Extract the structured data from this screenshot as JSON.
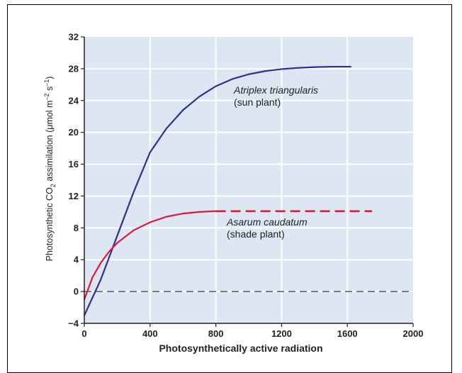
{
  "chart_data": {
    "type": "line",
    "xlabel": "Photosynthetically active radiation",
    "ylabel": {
      "prefix": "Photosynthetic CO",
      "sub": "2",
      "middle": " assimilation (μmol m",
      "sup1": "–2",
      "gap": " s",
      "sup2": "–1",
      "end": ")"
    },
    "xlim": [
      0,
      2000
    ],
    "ylim": [
      -4,
      32
    ],
    "xticks": [
      0,
      400,
      800,
      1200,
      1600,
      2000
    ],
    "yticks": [
      -4,
      0,
      4,
      8,
      12,
      16,
      20,
      24,
      28,
      32
    ],
    "grid": true,
    "background": "#dce7f3",
    "zero_line": {
      "y": 0,
      "style": "dashed",
      "color": "#555555"
    },
    "series": [
      {
        "name": "Atriplex triangularis",
        "label_line1": "Atriplex triangularis",
        "label_line2": "(sun plant)",
        "color": "#2e3192",
        "x": [
          0,
          100,
          200,
          300,
          400,
          500,
          600,
          700,
          800,
          900,
          1000,
          1100,
          1200,
          1300,
          1400,
          1500,
          1620
        ],
        "y": [
          -3,
          1.5,
          7,
          12.5,
          17.5,
          20.5,
          22.8,
          24.5,
          25.8,
          26.7,
          27.3,
          27.7,
          27.95,
          28.1,
          28.2,
          28.25,
          28.25
        ]
      },
      {
        "name": "Asarum caudatum",
        "label_line1": "Asarum caudatum",
        "label_line2": "(shade plant)",
        "color": "#e0193c",
        "x": [
          0,
          50,
          100,
          150,
          200,
          300,
          400,
          500,
          600,
          700,
          800
        ],
        "y": [
          -1,
          1.8,
          3.6,
          5.0,
          6.1,
          7.7,
          8.7,
          9.4,
          9.8,
          10.0,
          10.1
        ],
        "dashed_extension": {
          "x": [
            800,
            1750
          ],
          "y": [
            10.1,
            10.1
          ]
        }
      }
    ]
  }
}
